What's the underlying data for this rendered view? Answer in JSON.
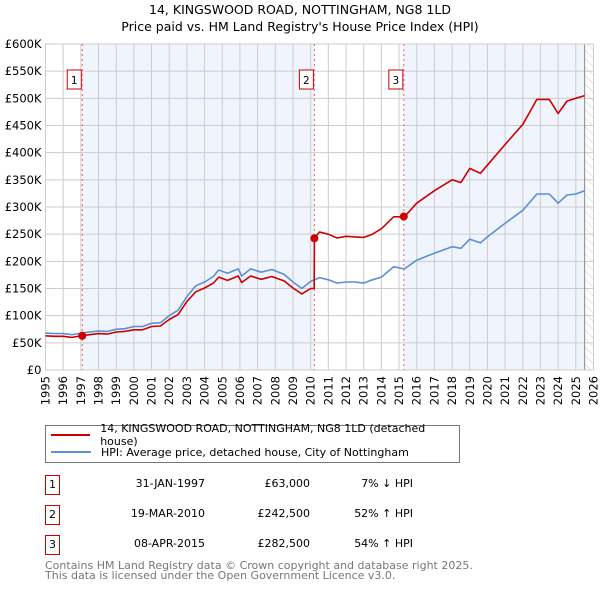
{
  "chart_data": {
    "type": "line",
    "title": "14, KINGSWOOD ROAD, NOTTINGHAM, NG8 1LD",
    "subtitle": "Price paid vs. HM Land Registry's House Price Index (HPI)",
    "xlim": [
      1995,
      2026
    ],
    "ylim": [
      0,
      600000
    ],
    "x_ticks": [
      "1995",
      "1996",
      "1997",
      "1998",
      "1999",
      "2000",
      "2001",
      "2002",
      "2003",
      "2004",
      "2005",
      "2006",
      "2007",
      "2008",
      "2009",
      "2010",
      "2011",
      "2012",
      "2013",
      "2014",
      "2015",
      "2016",
      "2017",
      "2018",
      "2019",
      "2020",
      "2021",
      "2022",
      "2023",
      "2024",
      "2025",
      "2026"
    ],
    "y_ticks": [
      {
        "v": 0,
        "label": "£0"
      },
      {
        "v": 50000,
        "label": "£50K"
      },
      {
        "v": 100000,
        "label": "£100K"
      },
      {
        "v": 150000,
        "label": "£150K"
      },
      {
        "v": 200000,
        "label": "£200K"
      },
      {
        "v": 250000,
        "label": "£250K"
      },
      {
        "v": 300000,
        "label": "£300K"
      },
      {
        "v": 350000,
        "label": "£350K"
      },
      {
        "v": 400000,
        "label": "£400K"
      },
      {
        "v": 450000,
        "label": "£450K"
      },
      {
        "v": 500000,
        "label": "£500K"
      },
      {
        "v": 550000,
        "label": "£550K"
      },
      {
        "v": 600000,
        "label": "£600K"
      }
    ],
    "grid": true,
    "forecast_start": 2025.5,
    "colors": {
      "price": "#cc0000",
      "hpi": "#5b8fd6",
      "shade": "#f0f4fc"
    },
    "series": [
      {
        "name": "14, KINGSWOOD ROAD, NOTTINGHAM, NG8 1LD (detached house)",
        "unit": "£K",
        "x": [
          1995,
          1995.5,
          1996,
          1996.5,
          1997,
          1997.5,
          1998,
          1998.5,
          1999,
          1999.5,
          2000,
          2000.5,
          2001,
          2001.5,
          2002,
          2002.5,
          2003,
          2003.5,
          2004,
          2004.5,
          2004.8,
          2005.3,
          2005.9,
          2006.1,
          2006.6,
          2007.2,
          2007.8,
          2008.5,
          2009,
          2009.5,
          2010,
          2010.2,
          2010.21,
          2010.5,
          2011,
          2011.5,
          2012,
          2012.5,
          2013,
          2013.5,
          2014,
          2014.7,
          2015.3,
          2016,
          2017,
          2018,
          2018.5,
          2019,
          2019.6,
          2020,
          2021,
          2022,
          2022.8,
          2023.5,
          2024,
          2024.5,
          2025,
          2025.5
        ],
        "values": [
          63,
          62,
          62,
          60,
          63,
          65,
          67,
          66,
          70,
          71,
          74,
          74,
          80,
          81,
          93,
          102,
          126,
          144,
          151,
          160,
          171,
          165,
          173,
          161,
          173,
          167,
          172,
          164,
          151,
          140,
          150,
          150,
          242.5,
          254,
          250,
          243,
          246,
          245,
          244,
          250,
          260,
          282,
          282,
          307,
          330,
          350,
          345,
          371,
          362,
          377,
          415,
          452,
          498,
          498,
          472,
          495,
          500,
          505
        ]
      },
      {
        "name": "HPI: Average price, detached house, City of Nottingham",
        "unit": "£K",
        "x": [
          1995,
          1995.5,
          1996,
          1996.5,
          1997,
          1997.5,
          1998,
          1998.5,
          1999,
          1999.5,
          2000,
          2000.5,
          2001,
          2001.5,
          2002,
          2002.5,
          2003,
          2003.5,
          2004,
          2004.5,
          2004.8,
          2005.3,
          2005.9,
          2006.1,
          2006.6,
          2007.2,
          2007.8,
          2008.5,
          2009,
          2009.5,
          2010,
          2010.5,
          2011,
          2011.5,
          2012,
          2012.5,
          2013,
          2013.5,
          2014,
          2014.7,
          2015.3,
          2016,
          2017,
          2018,
          2018.5,
          2019,
          2019.6,
          2020,
          2021,
          2022,
          2022.8,
          2023.5,
          2024,
          2024.5,
          2025,
          2025.5
        ],
        "values": [
          68,
          67,
          67,
          65,
          68,
          70,
          72,
          71,
          75,
          76,
          80,
          80,
          86,
          87,
          100,
          110,
          135,
          155,
          162,
          172,
          184,
          178,
          186,
          173,
          186,
          180,
          185,
          176,
          162,
          150,
          163,
          170,
          166,
          160,
          162,
          162,
          160,
          166,
          171,
          190,
          186,
          202,
          215,
          227,
          224,
          241,
          234,
          245,
          270,
          294,
          324,
          324,
          307,
          322,
          324,
          330
        ]
      }
    ],
    "sales": [
      {
        "num": "1",
        "x": 1997.08,
        "value": 63
      },
      {
        "num": "2",
        "x": 2010.21,
        "value": 242.5
      },
      {
        "num": "3",
        "x": 2015.27,
        "value": 282.5
      }
    ]
  },
  "legend": {
    "price_label": "14, KINGSWOOD ROAD, NOTTINGHAM, NG8 1LD (detached house)",
    "hpi_label": "HPI: Average price, detached house, City of Nottingham"
  },
  "transactions": [
    {
      "num": "1",
      "date": "31-JAN-1997",
      "price": "£63,000",
      "hpi": "7% ↓ HPI"
    },
    {
      "num": "2",
      "date": "19-MAR-2010",
      "price": "£242,500",
      "hpi": "52% ↑ HPI"
    },
    {
      "num": "3",
      "date": "08-APR-2015",
      "price": "£282,500",
      "hpi": "54% ↑ HPI"
    }
  ],
  "footer": {
    "line1": "Contains HM Land Registry data © Crown copyright and database right 2025.",
    "line2": "This data is licensed under the Open Government Licence v3.0."
  }
}
